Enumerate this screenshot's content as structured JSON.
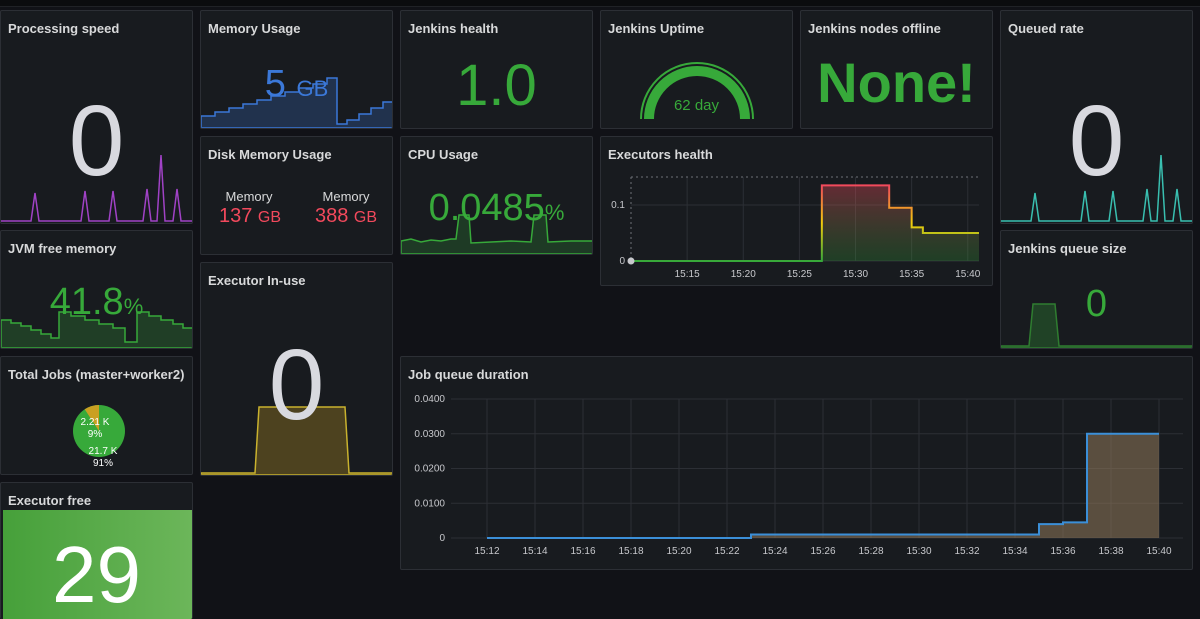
{
  "panels": {
    "processing_speed": {
      "title": "Processing speed",
      "value": "0"
    },
    "memory_usage": {
      "title": "Memory Usage",
      "value": "5",
      "unit": "GB"
    },
    "jenkins_health": {
      "title": "Jenkins health",
      "value": "1.0"
    },
    "jenkins_uptime": {
      "title": "Jenkins Uptime",
      "value": "62 day"
    },
    "nodes_offline": {
      "title": "Jenkins nodes offline",
      "value": "None!"
    },
    "queued_rate": {
      "title": "Queued rate",
      "value": "0"
    },
    "disk_memory": {
      "title": "Disk Memory Usage",
      "items": [
        {
          "label": "Memory",
          "value": "137",
          "unit": "GB"
        },
        {
          "label": "Memory",
          "value": "388",
          "unit": "GB"
        }
      ]
    },
    "cpu_usage": {
      "title": "CPU Usage",
      "value": "0.0485",
      "unit": "%"
    },
    "executors_health": {
      "title": "Executors health"
    },
    "jvm_free_memory": {
      "title": "JVM free memory",
      "value": "41.8",
      "unit": "%"
    },
    "executor_inuse": {
      "title": "Executor In-use",
      "value": "0"
    },
    "jenkins_queue_size": {
      "title": "Jenkins queue size",
      "value": "0"
    },
    "total_jobs": {
      "title": "Total Jobs (master+worker2)",
      "slices": [
        {
          "value": "2.21 K",
          "pct": "9%",
          "color": "#c9a022"
        },
        {
          "value": "21.7 K",
          "pct": "91%",
          "color": "#37872d"
        }
      ]
    },
    "job_queue_duration": {
      "title": "Job queue duration"
    },
    "executor_free": {
      "title": "Executor free",
      "value": "29"
    }
  },
  "chart_data": [
    {
      "type": "line",
      "title": "Executors health",
      "x": [
        "15:15",
        "15:20",
        "15:25",
        "15:30",
        "15:35",
        "15:40"
      ],
      "yticks": [
        "0",
        "0.1"
      ],
      "ylim": [
        0,
        0.15
      ],
      "series": [
        {
          "points": [
            [
              "15:10",
              0
            ],
            [
              "15:27",
              0
            ],
            [
              "15:27",
              0.135
            ],
            [
              "15:33",
              0.135
            ],
            [
              "15:33",
              0.095
            ],
            [
              "15:35",
              0.095
            ],
            [
              "15:35",
              0.06
            ],
            [
              "15:36",
              0.06
            ],
            [
              "15:36",
              0.05
            ],
            [
              "15:41",
              0.05
            ]
          ]
        }
      ]
    },
    {
      "type": "area",
      "title": "Job queue duration",
      "x": [
        "15:12",
        "15:14",
        "15:16",
        "15:18",
        "15:20",
        "15:22",
        "15:24",
        "15:26",
        "15:28",
        "15:30",
        "15:32",
        "15:34",
        "15:36",
        "15:38",
        "15:40"
      ],
      "yticks": [
        "0",
        "0.0100",
        "0.0200",
        "0.0300",
        "0.0400"
      ],
      "ylim": [
        0,
        0.04
      ],
      "series": [
        {
          "points": [
            [
              "15:12",
              0
            ],
            [
              "15:23",
              0
            ],
            [
              "15:23",
              0.001
            ],
            [
              "15:34",
              0.001
            ],
            [
              "15:35",
              0.001
            ],
            [
              "15:35",
              0.004
            ],
            [
              "15:36",
              0.004
            ],
            [
              "15:36",
              0.0045
            ],
            [
              "15:37",
              0.0045
            ],
            [
              "15:37",
              0.03
            ],
            [
              "15:40",
              0.03
            ]
          ]
        }
      ]
    }
  ],
  "colors": {
    "green": "#37a93a",
    "blue": "#3b78d8",
    "red": "#f2495c",
    "purple": "#a042c6",
    "teal": "#39bfb0",
    "yellow": "#f2cc0c",
    "white": "#d8d9df",
    "panel_bg": "#181b1f",
    "free_bg": "#4fa53c"
  }
}
